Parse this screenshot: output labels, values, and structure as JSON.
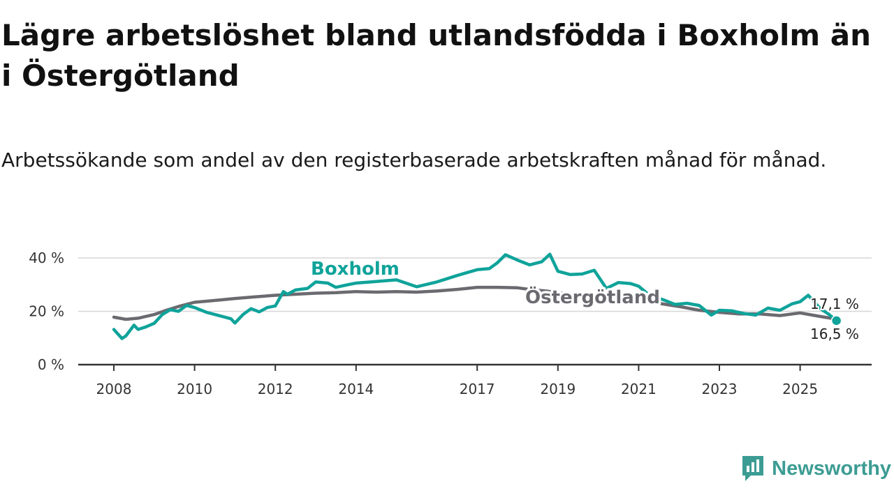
{
  "title": "Lägre arbetslöshet bland utlandsfödda i Boxholm än i Östergötland",
  "subtitle": "Arbetssökande som andel av den registerbaserade arbetskraften månad för månad.",
  "brand": {
    "name": "Newsworthy",
    "icon": "newsworthy-logo-icon",
    "color": "#3c9c93"
  },
  "chart_data": {
    "type": "line",
    "title": "Lägre arbetslöshet bland utlandsfödda i Boxholm än i Östergötland",
    "xlabel": "",
    "ylabel": "",
    "xlim": [
      2008,
      2026.2
    ],
    "ylim": [
      0,
      40
    ],
    "xticks": [
      2008,
      2010,
      2012,
      2014,
      2017,
      2019,
      2021,
      2023,
      2025
    ],
    "xtick_labels": [
      "2008",
      "2010",
      "2012",
      "2014",
      "2017",
      "2019",
      "2021",
      "2023",
      "2025"
    ],
    "yticks": [
      0,
      20,
      40
    ],
    "ytick_labels": [
      "0 %",
      "20 %",
      "40 %"
    ],
    "grid": true,
    "series": [
      {
        "name": "Boxholm",
        "color": "#0fa39a",
        "label": "Boxholm",
        "end_label": "16,5 %",
        "x": [
          2008.0,
          2008.2,
          2008.3,
          2008.5,
          2008.6,
          2008.8,
          2009.0,
          2009.2,
          2009.4,
          2009.6,
          2009.8,
          2010.0,
          2010.3,
          2010.6,
          2010.9,
          2011.0,
          2011.2,
          2011.4,
          2011.6,
          2011.8,
          2012.0,
          2012.2,
          2012.3,
          2012.5,
          2012.8,
          2013.0,
          2013.3,
          2013.5,
          2013.8,
          2014.0,
          2014.5,
          2015.0,
          2015.5,
          2016.0,
          2016.5,
          2017.0,
          2017.3,
          2017.5,
          2017.7,
          2018.0,
          2018.3,
          2018.6,
          2018.8,
          2019.0,
          2019.3,
          2019.6,
          2019.9,
          2020.2,
          2020.5,
          2020.8,
          2021.0,
          2021.3,
          2021.6,
          2021.9,
          2022.2,
          2022.5,
          2022.8,
          2023.0,
          2023.3,
          2023.6,
          2023.9,
          2024.2,
          2024.5,
          2024.8,
          2025.0,
          2025.2,
          2025.5,
          2025.7,
          2025.9
        ],
        "y": [
          13.2,
          9.8,
          10.8,
          14.8,
          13.2,
          14.2,
          15.5,
          18.8,
          20.6,
          20.0,
          22.2,
          21.4,
          19.6,
          18.4,
          17.2,
          15.6,
          18.8,
          21.0,
          19.8,
          21.4,
          22.0,
          27.4,
          26.4,
          28.0,
          28.6,
          31.0,
          30.6,
          29.0,
          30.0,
          30.6,
          31.2,
          31.8,
          29.2,
          31.0,
          33.4,
          35.6,
          36.0,
          38.2,
          41.2,
          39.2,
          37.4,
          38.6,
          41.4,
          35.0,
          33.8,
          34.0,
          35.4,
          28.6,
          30.8,
          30.4,
          29.4,
          25.6,
          24.4,
          22.6,
          23.0,
          22.2,
          18.6,
          20.4,
          20.2,
          19.2,
          18.6,
          21.2,
          20.4,
          22.8,
          23.6,
          26.0,
          21.0,
          19.0,
          16.5
        ]
      },
      {
        "name": "Östergötland",
        "color": "#6b6a70",
        "label": "Östergötland",
        "end_label": "17,1 %",
        "x": [
          2008.0,
          2008.3,
          2008.6,
          2009.0,
          2009.3,
          2009.6,
          2010.0,
          2010.3,
          2010.6,
          2011.0,
          2011.5,
          2012.0,
          2012.5,
          2013.0,
          2013.5,
          2014.0,
          2014.5,
          2015.0,
          2015.5,
          2016.0,
          2016.5,
          2017.0,
          2017.5,
          2018.0,
          2018.3,
          2018.7,
          2019.0,
          2019.5,
          2020.0,
          2020.5,
          2021.0,
          2021.5,
          2022.0,
          2022.5,
          2023.0,
          2023.5,
          2024.0,
          2024.5,
          2025.0,
          2025.3,
          2025.6,
          2025.9
        ],
        "y": [
          17.8,
          17.0,
          17.4,
          18.8,
          20.4,
          21.8,
          23.4,
          23.8,
          24.2,
          24.8,
          25.4,
          26.0,
          26.4,
          26.8,
          27.0,
          27.4,
          27.2,
          27.4,
          27.2,
          27.6,
          28.2,
          29.0,
          29.0,
          28.8,
          28.2,
          27.6,
          27.0,
          26.2,
          25.6,
          24.8,
          24.2,
          23.0,
          21.8,
          20.4,
          19.6,
          19.0,
          19.0,
          18.4,
          19.4,
          18.6,
          17.8,
          17.1
        ]
      }
    ]
  }
}
